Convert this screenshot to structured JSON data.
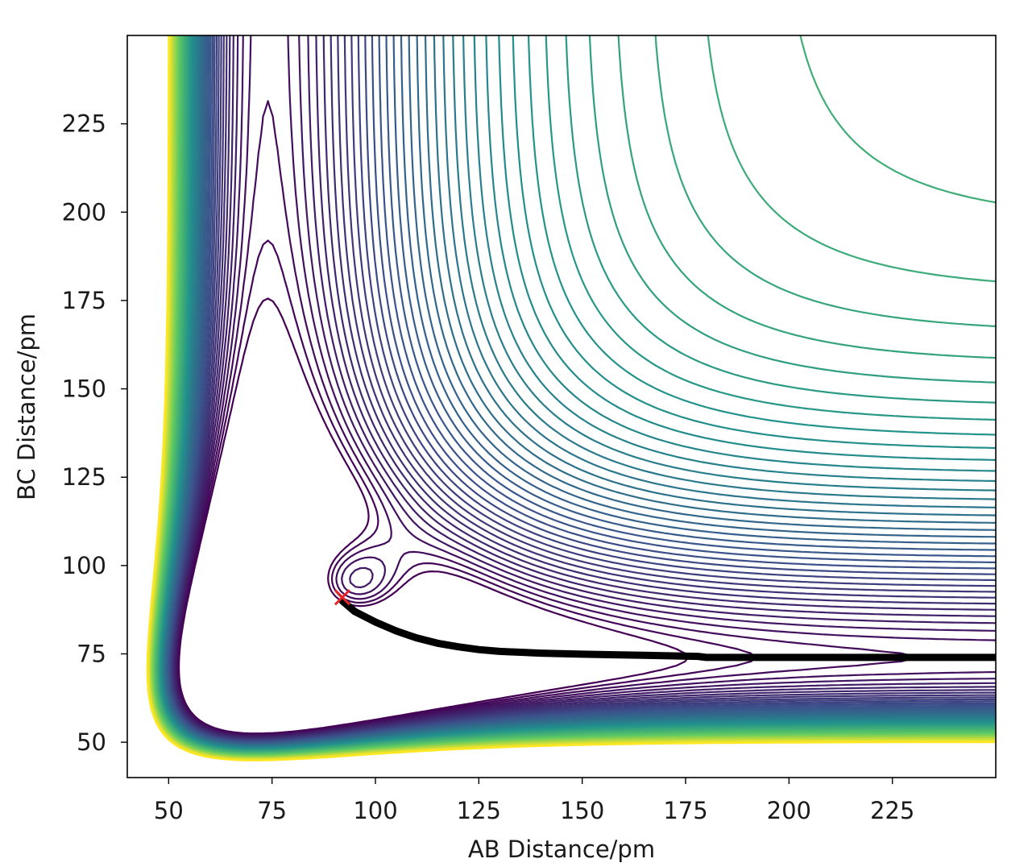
{
  "chart_data": {
    "type": "contour",
    "xlabel": "AB Distance/pm",
    "ylabel": "BC Distance/pm",
    "xlim": [
      40,
      250
    ],
    "ylim": [
      40,
      250
    ],
    "x_ticks": [
      50,
      75,
      100,
      125,
      150,
      175,
      200,
      225
    ],
    "y_ticks": [
      50,
      75,
      100,
      125,
      150,
      175,
      200,
      225
    ],
    "grid": false,
    "legend": "none",
    "colormap": [
      "#440154",
      "#3b528b",
      "#21918c",
      "#5ec962",
      "#fde725"
    ],
    "contour_levels": 60,
    "trajectory": {
      "color": "#000000",
      "points": [
        [
          92,
          90
        ],
        [
          95,
          87
        ],
        [
          100,
          84
        ],
        [
          105,
          81.5
        ],
        [
          110,
          79.5
        ],
        [
          115,
          78
        ],
        [
          120,
          77
        ],
        [
          125,
          76.2
        ],
        [
          130,
          75.7
        ],
        [
          140,
          75.2
        ],
        [
          150,
          74.9
        ],
        [
          165,
          74.6
        ],
        [
          178,
          74.3
        ],
        [
          180,
          74
        ],
        [
          200,
          74
        ],
        [
          225,
          74
        ],
        [
          250,
          74
        ]
      ]
    },
    "start_marker": {
      "x": 92,
      "y": 91,
      "symbol": "x",
      "color": "#e8262a"
    }
  }
}
